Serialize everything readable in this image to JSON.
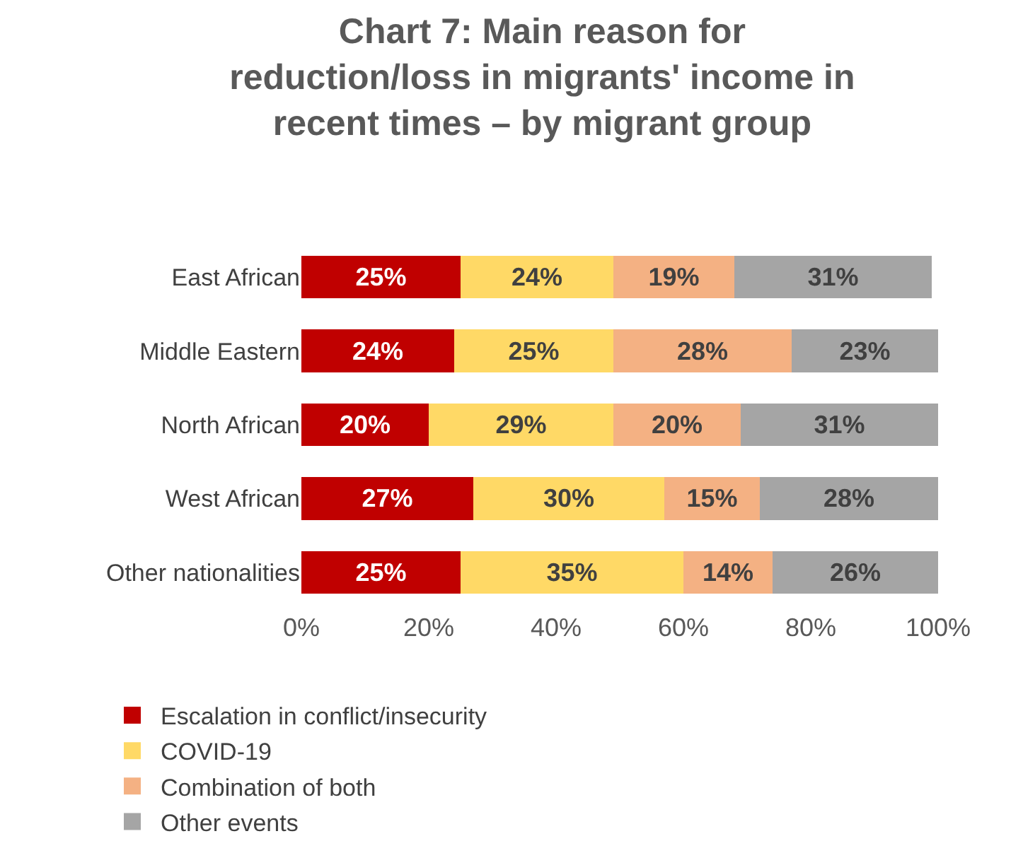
{
  "chart_data": {
    "type": "bar",
    "title": "Chart 7: Main reason for reduction/loss in migrants' income in recent times – by migrant group",
    "orientation": "horizontal",
    "stacked": true,
    "categories": [
      "East African",
      "Middle Eastern",
      "North African",
      "West African",
      "Other nationalities"
    ],
    "series": [
      {
        "name": "Escalation in conflict/insecurity",
        "color": "#c00000",
        "values": [
          25,
          24,
          20,
          27,
          25
        ],
        "value_labels": [
          "25%",
          "24%",
          "20%",
          "27%",
          "25%"
        ]
      },
      {
        "name": "COVID-19",
        "color": "#ffd966",
        "values": [
          24,
          25,
          29,
          30,
          35
        ],
        "value_labels": [
          "24%",
          "25%",
          "29%",
          "30%",
          "35%"
        ]
      },
      {
        "name": "Combination of both",
        "color": "#f4b183",
        "values": [
          19,
          28,
          20,
          15,
          14
        ],
        "value_labels": [
          "19%",
          "28%",
          "20%",
          "15%",
          "14%"
        ]
      },
      {
        "name": "Other events",
        "color": "#a5a5a5",
        "values": [
          31,
          23,
          31,
          28,
          26
        ],
        "value_labels": [
          "31%",
          "23%",
          "31%",
          "28%",
          "26%"
        ]
      }
    ],
    "xlim": [
      0,
      100
    ],
    "xticks": [
      {
        "value": 0,
        "label": "0%"
      },
      {
        "value": 20,
        "label": "20%"
      },
      {
        "value": 40,
        "label": "40%"
      },
      {
        "value": 60,
        "label": "60%"
      },
      {
        "value": 80,
        "label": "80%"
      },
      {
        "value": 100,
        "label": "100%"
      }
    ],
    "grid": false,
    "legend": "bottom"
  }
}
